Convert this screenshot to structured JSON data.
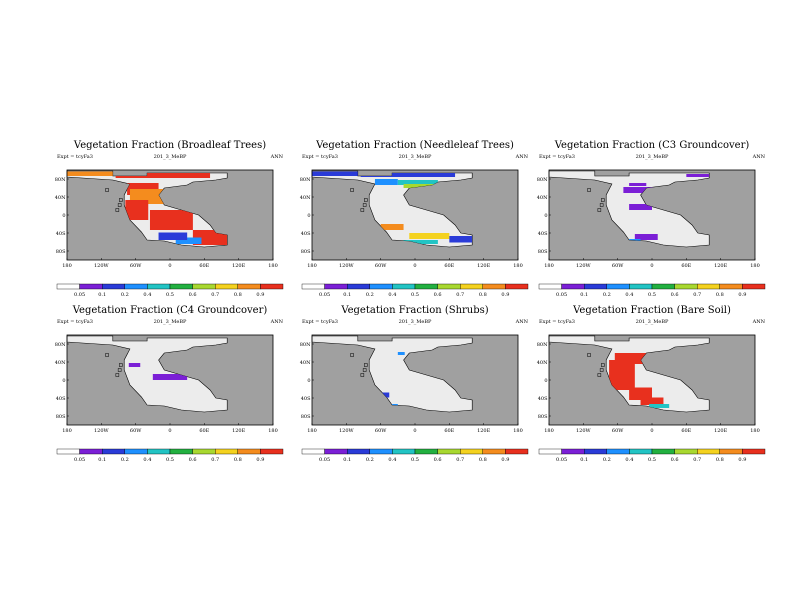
{
  "colors": [
    "#ffffff",
    "#7b1fd6",
    "#2a3bd8",
    "#1e90ff",
    "#22c4c4",
    "#22b040",
    "#a8d830",
    "#f4d21f",
    "#f48c1e",
    "#e8301e"
  ],
  "land_color": "#ececec",
  "ocean_color": "#a0a0a0",
  "x_ticks": [
    "180",
    "120W",
    "60W",
    "0",
    "60E",
    "120E",
    "180"
  ],
  "y_ticks": [
    "80N",
    "40N",
    "0",
    "40S",
    "80S"
  ],
  "colorbar_labels": [
    "0.05",
    "0.1",
    "0.2",
    "0.4",
    "0.5",
    "0.6",
    "0.7",
    "0.8",
    "0.9"
  ],
  "chart_data": [
    {
      "type": "heatmap",
      "title": "Vegetation Fraction (Broadleaf Trees)",
      "expt": "Expt = tcyFa3",
      "subtitle": "201_3_MeBP",
      "period": "ANN",
      "regions": [
        {
          "lon": [
            -180,
            -95
          ],
          "lat": [
            78,
            87
          ],
          "level": 8
        },
        {
          "lon": [
            -95,
            70
          ],
          "lat": [
            74,
            84
          ],
          "level": 9
        },
        {
          "lon": [
            -75,
            -20
          ],
          "lat": [
            40,
            64
          ],
          "level": 9
        },
        {
          "lon": [
            -70,
            40
          ],
          "lat": [
            22,
            52
          ],
          "level": 8
        },
        {
          "lon": [
            -78,
            -38
          ],
          "lat": [
            -10,
            30
          ],
          "level": 9
        },
        {
          "lon": [
            -35,
            40
          ],
          "lat": [
            -30,
            10
          ],
          "level": 9
        },
        {
          "lon": [
            40,
            100
          ],
          "lat": [
            -60,
            -30
          ],
          "level": 9
        },
        {
          "lon": [
            10,
            55
          ],
          "lat": [
            -58,
            -45
          ],
          "level": 3
        },
        {
          "lon": [
            -20,
            30
          ],
          "lat": [
            -50,
            -35
          ],
          "level": 2
        }
      ]
    },
    {
      "type": "heatmap",
      "title": "Vegetation Fraction (Needleleaf Trees)",
      "expt": "Expt = tcyFa3",
      "subtitle": "201_3_MeBP",
      "period": "ANN",
      "regions": [
        {
          "lon": [
            -180,
            -95
          ],
          "lat": [
            78,
            87
          ],
          "level": 2
        },
        {
          "lon": [
            -95,
            70
          ],
          "lat": [
            76,
            86
          ],
          "level": 2
        },
        {
          "lon": [
            -70,
            -30
          ],
          "lat": [
            60,
            72
          ],
          "level": 3
        },
        {
          "lon": [
            -30,
            40
          ],
          "lat": [
            60,
            70
          ],
          "level": 4
        },
        {
          "lon": [
            -20,
            40
          ],
          "lat": [
            54,
            62
          ],
          "level": 6
        },
        {
          "lon": [
            40,
            70
          ],
          "lat": [
            58,
            66
          ],
          "level": 7
        },
        {
          "lon": [
            -60,
            -20
          ],
          "lat": [
            -30,
            -18
          ],
          "level": 8
        },
        {
          "lon": [
            -10,
            60
          ],
          "lat": [
            -48,
            -36
          ],
          "level": 7
        },
        {
          "lon": [
            60,
            100
          ],
          "lat": [
            -55,
            -42
          ],
          "level": 2
        },
        {
          "lon": [
            -20,
            40
          ],
          "lat": [
            -58,
            -50
          ],
          "level": 4
        }
      ]
    },
    {
      "type": "heatmap",
      "title": "Vegetation Fraction (C3 Groundcover)",
      "expt": "Expt = tcyFa3",
      "subtitle": "201_3_MeBP",
      "period": "ANN",
      "regions": [
        {
          "lon": [
            -40,
            -10
          ],
          "lat": [
            58,
            64
          ],
          "level": 1
        },
        {
          "lon": [
            60,
            100
          ],
          "lat": [
            76,
            82
          ],
          "level": 1
        },
        {
          "lon": [
            -50,
            20
          ],
          "lat": [
            44,
            56
          ],
          "level": 1
        },
        {
          "lon": [
            30,
            60
          ],
          "lat": [
            50,
            56
          ],
          "level": 1
        },
        {
          "lon": [
            -40,
            0
          ],
          "lat": [
            10,
            22
          ],
          "level": 1
        },
        {
          "lon": [
            -30,
            10
          ],
          "lat": [
            -50,
            -38
          ],
          "level": 1
        },
        {
          "lon": [
            -40,
            -20
          ],
          "lat": [
            -58,
            -48
          ],
          "level": 3
        }
      ]
    },
    {
      "type": "heatmap",
      "title": "Vegetation Fraction (C4 Groundcover)",
      "expt": "Expt = tcyFa3",
      "subtitle": "201_3_MeBP",
      "period": "ANN",
      "regions": [
        {
          "lon": [
            -30,
            30
          ],
          "lat": [
            0,
            12
          ],
          "level": 1
        },
        {
          "lon": [
            -72,
            -52
          ],
          "lat": [
            26,
            34
          ],
          "level": 1
        }
      ]
    },
    {
      "type": "heatmap",
      "title": "Vegetation Fraction (Shrubs)",
      "expt": "Expt = tcyFa3",
      "subtitle": "201_3_MeBP",
      "period": "ANN",
      "regions": [
        {
          "lon": [
            110,
            125
          ],
          "lat": [
            80,
            86
          ],
          "level": 3
        },
        {
          "lon": [
            -30,
            -18
          ],
          "lat": [
            50,
            56
          ],
          "level": 3
        },
        {
          "lon": [
            -40,
            -30
          ],
          "lat": [
            -55,
            -48
          ],
          "level": 3
        },
        {
          "lon": [
            -60,
            -45
          ],
          "lat": [
            -35,
            -25
          ],
          "level": 2
        }
      ]
    },
    {
      "type": "heatmap",
      "title": "Vegetation Fraction (Bare Soil)",
      "expt": "Expt = tcyFa3",
      "subtitle": "201_3_MeBP",
      "period": "ANN",
      "regions": [
        {
          "lon": [
            -75,
            -30
          ],
          "lat": [
            -20,
            40
          ],
          "level": 9
        },
        {
          "lon": [
            -65,
            -5
          ],
          "lat": [
            32,
            54
          ],
          "level": 9
        },
        {
          "lon": [
            -40,
            0
          ],
          "lat": [
            -40,
            -15
          ],
          "level": 9
        },
        {
          "lon": [
            -20,
            20
          ],
          "lat": [
            -50,
            -35
          ],
          "level": 9
        },
        {
          "lon": [
            -5,
            30
          ],
          "lat": [
            -56,
            -48
          ],
          "level": 4
        }
      ]
    }
  ]
}
